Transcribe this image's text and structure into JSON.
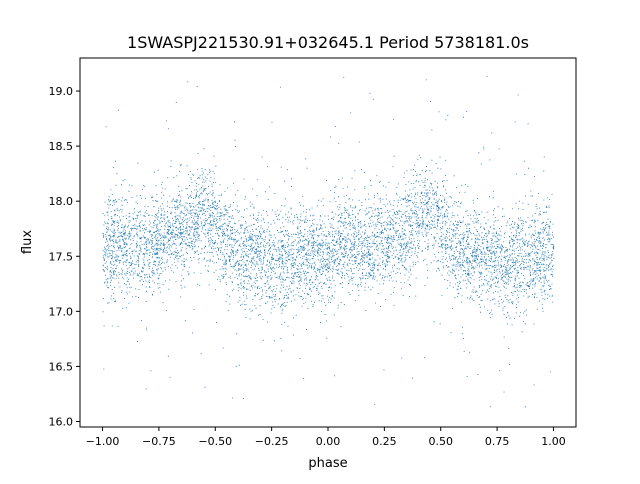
{
  "chart_data": {
    "type": "scatter",
    "title": "1SWASPJ221530.91+032645.1 Period 5738181.0s",
    "xlabel": "phase",
    "ylabel": "flux",
    "xlim": [
      -1.1,
      1.1
    ],
    "ylim": [
      15.95,
      19.3
    ],
    "xticks": [
      -1.0,
      -0.75,
      -0.5,
      -0.25,
      0.0,
      0.25,
      0.5,
      0.75,
      1.0
    ],
    "xtick_labels": [
      "−1.00",
      "−0.75",
      "−0.50",
      "−0.25",
      "0.00",
      "0.25",
      "0.50",
      "0.75",
      "1.00"
    ],
    "yticks": [
      16.0,
      16.5,
      17.0,
      17.5,
      18.0,
      18.5,
      19.0
    ],
    "ytick_labels": [
      "16.0",
      "16.5",
      "17.0",
      "17.5",
      "18.0",
      "18.5",
      "19.0"
    ],
    "grid": false,
    "marker_color": "#1f77b4",
    "binned_profile": {
      "phase": [
        -1.0,
        -0.95,
        -0.9,
        -0.85,
        -0.8,
        -0.75,
        -0.7,
        -0.65,
        -0.6,
        -0.55,
        -0.5,
        -0.45,
        -0.4,
        -0.35,
        -0.3,
        -0.25,
        -0.2,
        -0.15,
        -0.1,
        -0.05,
        0.0,
        0.05,
        0.1,
        0.15,
        0.2,
        0.25,
        0.3,
        0.35,
        0.4,
        0.45,
        0.5,
        0.55,
        0.6,
        0.65,
        0.7,
        0.75,
        0.8,
        0.85,
        0.9,
        0.95,
        1.0
      ],
      "median_flux": [
        17.55,
        17.6,
        17.6,
        17.6,
        17.6,
        17.65,
        17.7,
        17.75,
        17.85,
        17.9,
        17.8,
        17.6,
        17.55,
        17.5,
        17.5,
        17.45,
        17.45,
        17.45,
        17.5,
        17.5,
        17.55,
        17.6,
        17.6,
        17.6,
        17.6,
        17.65,
        17.7,
        17.75,
        17.85,
        17.9,
        17.8,
        17.6,
        17.55,
        17.5,
        17.5,
        17.45,
        17.45,
        17.45,
        17.5,
        17.5,
        17.55
      ],
      "scatter_sigma": 0.22,
      "flux_range": [
        16.1,
        19.15
      ]
    }
  }
}
